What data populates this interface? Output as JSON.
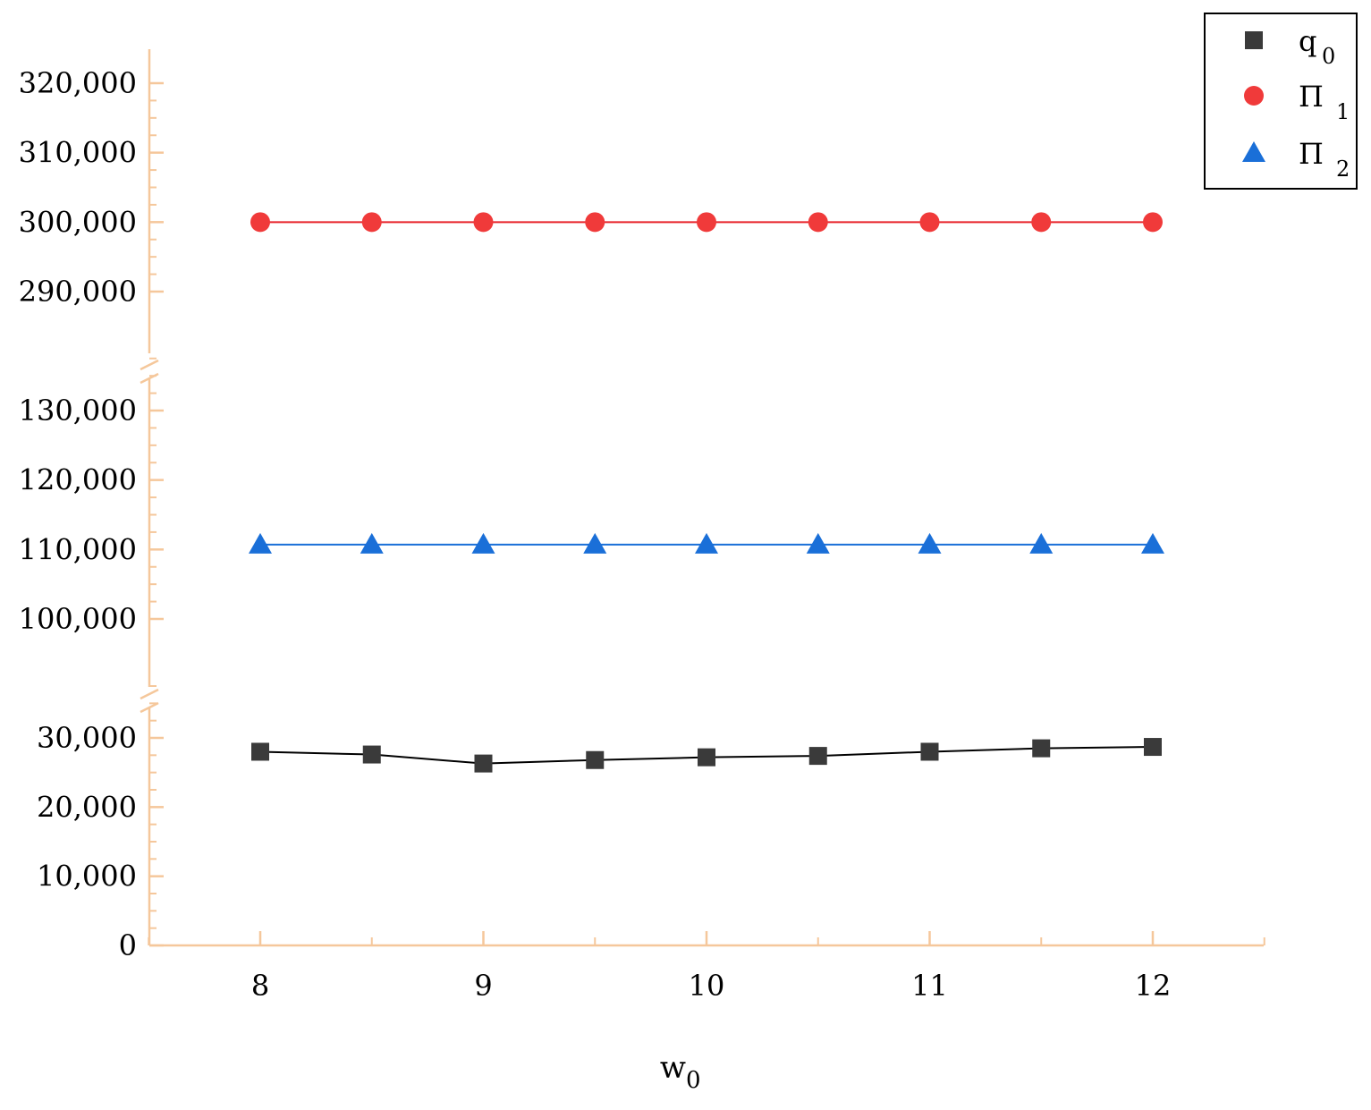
{
  "chart_data": {
    "type": "line",
    "xlabel": "w",
    "xlabel_sub": "0",
    "x": [
      8,
      8.5,
      9,
      9.5,
      10,
      10.5,
      11,
      11.5,
      12
    ],
    "xticks": [
      8,
      9,
      10,
      11,
      12
    ],
    "xlim": [
      7.5,
      12.5
    ],
    "y_axis": {
      "broken": true,
      "segments": [
        {
          "range": [
            0,
            35000
          ],
          "ticks": [
            "0",
            "10,000",
            "20,000",
            "30,000"
          ],
          "tick_values": [
            0,
            10000,
            20000,
            30000
          ]
        },
        {
          "range": [
            90000,
            137000
          ],
          "ticks": [
            "100,000",
            "110,000",
            "120,000",
            "130,000"
          ],
          "tick_values": [
            100000,
            110000,
            120000,
            130000
          ]
        },
        {
          "range": [
            281000,
            325000
          ],
          "ticks": [
            "290,000",
            "300,000",
            "310,000",
            "320,000"
          ],
          "tick_values": [
            290000,
            300000,
            310000,
            320000
          ]
        }
      ]
    },
    "series": [
      {
        "name": "q",
        "name_sub": "0",
        "marker": "square",
        "color": "#3a3a3a",
        "line_color": "#000000",
        "values": [
          28000,
          27600,
          26300,
          26800,
          27200,
          27400,
          28000,
          28500,
          28700
        ]
      },
      {
        "name": "Π",
        "name_sub": "1",
        "marker": "circle",
        "color": "#f03a3a",
        "line_color": "#e8232a",
        "values": [
          300000,
          300000,
          300000,
          300000,
          300000,
          300000,
          300000,
          300000,
          300000
        ]
      },
      {
        "name": "Π",
        "name_sub": "2",
        "marker": "triangle",
        "color": "#1a6fd8",
        "line_color": "#1a6fd8",
        "values": [
          110700,
          110700,
          110700,
          110700,
          110700,
          110700,
          110700,
          110700,
          110700
        ]
      }
    ],
    "legend_position": "top-right",
    "axis_color": "#f5c79b",
    "grid": false
  }
}
